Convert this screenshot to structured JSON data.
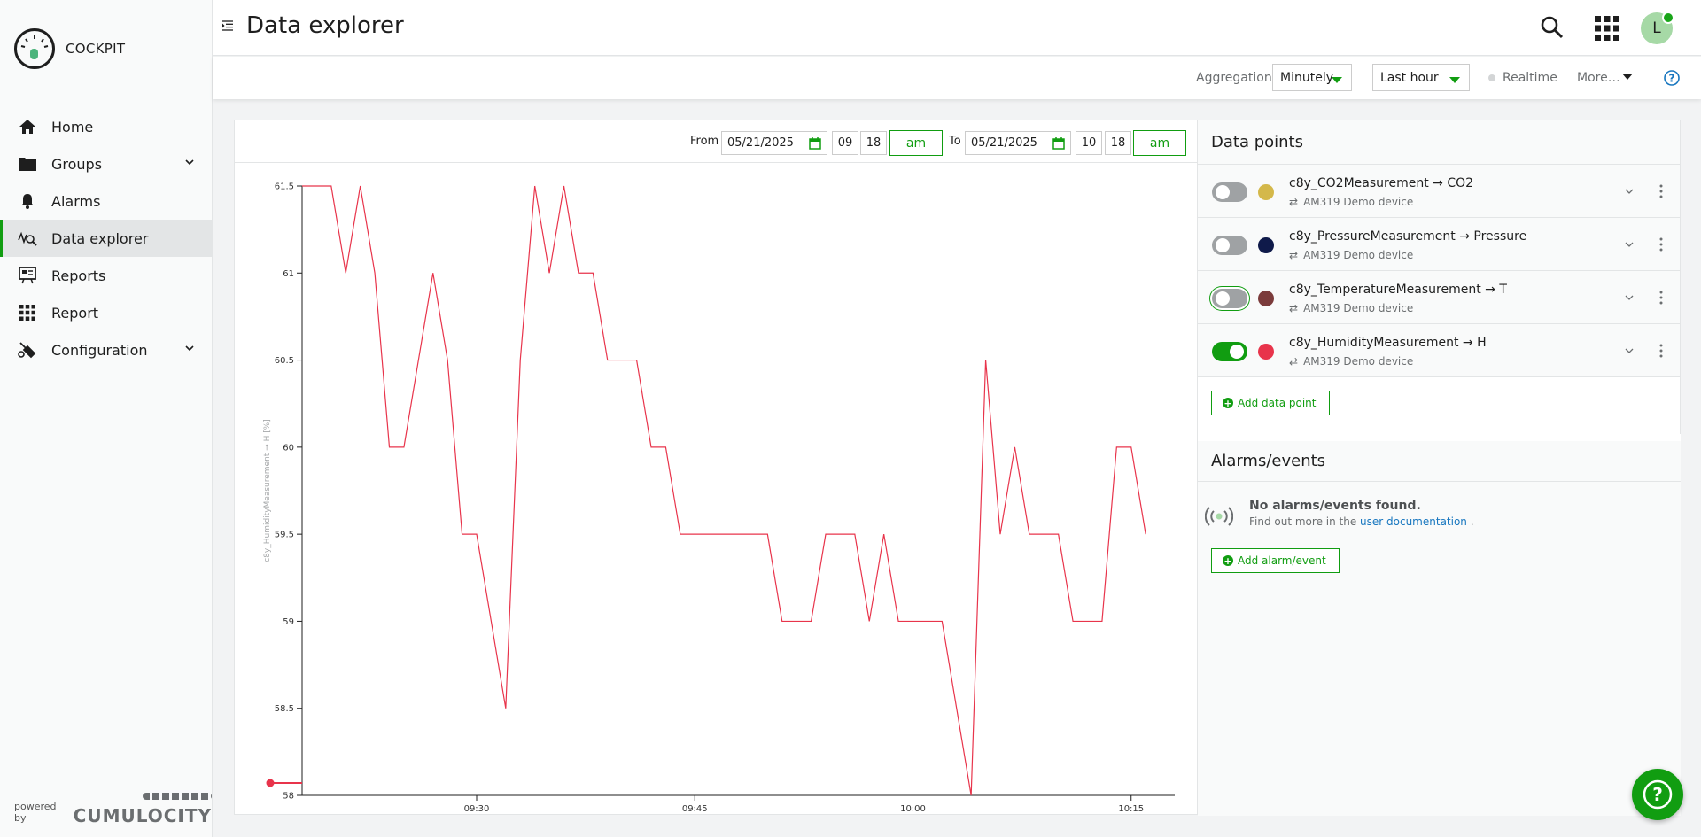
{
  "brand": {
    "name": "COCKPIT"
  },
  "sidebar": {
    "items": [
      {
        "label": "Home",
        "icon": "home-icon"
      },
      {
        "label": "Groups",
        "icon": "folder-icon",
        "expandable": true
      },
      {
        "label": "Alarms",
        "icon": "bell-icon"
      },
      {
        "label": "Data explorer",
        "icon": "data-explorer-icon",
        "active": true
      },
      {
        "label": "Reports",
        "icon": "reports-icon"
      },
      {
        "label": "Report",
        "icon": "grid-icon"
      },
      {
        "label": "Configuration",
        "icon": "configuration-icon",
        "expandable": true
      }
    ],
    "powered_by": "powered by",
    "powered_brand": "CUMULOCITY"
  },
  "header": {
    "title": "Data explorer",
    "avatar_initial": "L"
  },
  "toolbar": {
    "aggregation_label": "Aggregation",
    "aggregation_value": "Minutely",
    "range_value": "Last hour",
    "realtime_label": "Realtime",
    "more_label": "More…"
  },
  "range": {
    "from_label": "From",
    "from_date": "05/21/2025",
    "from_hour": "09",
    "from_minute": "18",
    "from_ampm": "am",
    "to_label": "To",
    "to_date": "05/21/2025",
    "to_hour": "10",
    "to_minute": "18",
    "to_ampm": "am"
  },
  "chart_data": {
    "type": "line",
    "ylabel": "c8y_HumidityMeasurement → H [%]",
    "ylim": [
      58,
      61.5
    ],
    "yticks": [
      "61.5",
      "61",
      "60.5",
      "60",
      "59.5",
      "59",
      "58.5",
      "58"
    ],
    "xlim": [
      "09:18",
      "10:18"
    ],
    "xticks": [
      {
        "label": "09:30",
        "t": 12
      },
      {
        "label": "09:45",
        "t": 27
      },
      {
        "label": "10:00",
        "t": 42
      },
      {
        "label": "10:15",
        "t": 57
      }
    ],
    "series": [
      {
        "color": "#e8344b",
        "points": [
          [
            0,
            61.5
          ],
          [
            1,
            61.5
          ],
          [
            2,
            61.5
          ],
          [
            3,
            61
          ],
          [
            4,
            61.5
          ],
          [
            5,
            61
          ],
          [
            6,
            60
          ],
          [
            7,
            60
          ],
          [
            8,
            60.5
          ],
          [
            9,
            61
          ],
          [
            10,
            60.5
          ],
          [
            11,
            59.5
          ],
          [
            12,
            59.5
          ],
          [
            13,
            59
          ],
          [
            14,
            58.5
          ],
          [
            15,
            60.5
          ],
          [
            16,
            61.5
          ],
          [
            17,
            61
          ],
          [
            18,
            61.5
          ],
          [
            19,
            61
          ],
          [
            20,
            61
          ],
          [
            21,
            60.5
          ],
          [
            22,
            60.5
          ],
          [
            23,
            60.5
          ],
          [
            24,
            60
          ],
          [
            25,
            60
          ],
          [
            26,
            59.5
          ],
          [
            27,
            59.5
          ],
          [
            28,
            59.5
          ],
          [
            29,
            59.5
          ],
          [
            30,
            59.5
          ],
          [
            31,
            59.5
          ],
          [
            32,
            59.5
          ],
          [
            33,
            59
          ],
          [
            34,
            59
          ],
          [
            35,
            59
          ],
          [
            36,
            59.5
          ],
          [
            37,
            59.5
          ],
          [
            38,
            59.5
          ],
          [
            39,
            59
          ],
          [
            40,
            59.5
          ],
          [
            41,
            59
          ],
          [
            42,
            59
          ],
          [
            43,
            59
          ],
          [
            44,
            59
          ],
          [
            45,
            58.5
          ],
          [
            46,
            58
          ],
          [
            47,
            60.5
          ],
          [
            48,
            59.5
          ],
          [
            49,
            60
          ],
          [
            50,
            59.5
          ],
          [
            51,
            59.5
          ],
          [
            52,
            59.5
          ],
          [
            53,
            59
          ],
          [
            54,
            59
          ],
          [
            55,
            59
          ],
          [
            56,
            60
          ],
          [
            57,
            60
          ],
          [
            58,
            59.5
          ]
        ]
      }
    ]
  },
  "datapoints_title": "Data points",
  "datapoints": [
    {
      "name": "c8y_CO2Measurement → CO2",
      "device": "AM319 Demo device",
      "color": "#d4b84a",
      "enabled": false,
      "focused": false
    },
    {
      "name": "c8y_PressureMeasurement → Pressure",
      "device": "AM319 Demo device",
      "color": "#0f1a4a",
      "enabled": false,
      "focused": false
    },
    {
      "name": "c8y_TemperatureMeasurement → T",
      "device": "AM319 Demo device",
      "color": "#7b3b3b",
      "enabled": false,
      "focused": true
    },
    {
      "name": "c8y_HumidityMeasurement → H",
      "device": "AM319 Demo device",
      "color": "#e8344b",
      "enabled": true,
      "focused": false
    }
  ],
  "add_datapoint_label": "Add data point",
  "alarms": {
    "title": "Alarms/events",
    "empty_title": "No alarms/events found.",
    "empty_text_prefix": "Find out more in the ",
    "empty_link": "user documentation",
    "empty_text_suffix": " .",
    "add_label": "Add alarm/event"
  }
}
